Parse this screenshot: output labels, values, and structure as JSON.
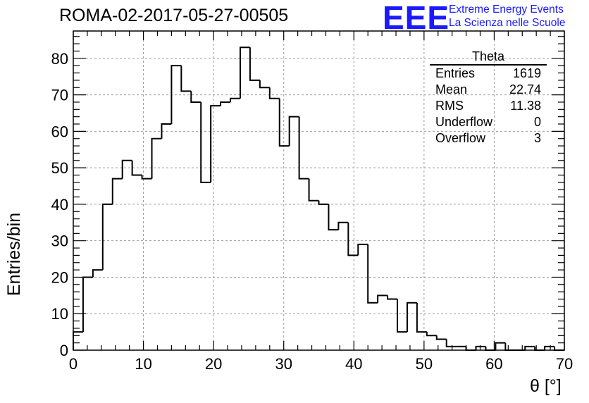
{
  "logo": {
    "mark": "EEE",
    "line1": "Extreme Energy Events",
    "line2": "La Scienza nelle Scuole",
    "color": "#1a1aff"
  },
  "stats": {
    "name": "Theta",
    "rows": [
      {
        "label": "Entries",
        "value": "1619"
      },
      {
        "label": "Mean",
        "value": "22.74"
      },
      {
        "label": "RMS",
        "value": "11.38"
      },
      {
        "label": "Underflow",
        "value": "0"
      },
      {
        "label": "Overflow",
        "value": "3"
      }
    ]
  },
  "chart_data": {
    "type": "bar",
    "title": "ROMA-02-2017-05-27-00505",
    "xlabel": "θ [°]",
    "ylabel": "Entries/bin",
    "xlim": [
      0,
      70
    ],
    "ylim": [
      0,
      87.5
    ],
    "xticks": [
      0,
      10,
      20,
      30,
      40,
      50,
      60,
      70
    ],
    "yticks": [
      0,
      10,
      20,
      30,
      40,
      50,
      60,
      70,
      80
    ],
    "grid": true,
    "bin_width": 1.4,
    "bin_edges_start": 0,
    "values": [
      5,
      20,
      22,
      40,
      47,
      52,
      48,
      47,
      58,
      62,
      78,
      71,
      68,
      46,
      67,
      68,
      69,
      83,
      74,
      72,
      69,
      56,
      64,
      47,
      41,
      40,
      33,
      35,
      26,
      29,
      13,
      15,
      14,
      5,
      13,
      5,
      4,
      3,
      1,
      1,
      0,
      1,
      0,
      2,
      0,
      0,
      1,
      0,
      1,
      0
    ]
  }
}
